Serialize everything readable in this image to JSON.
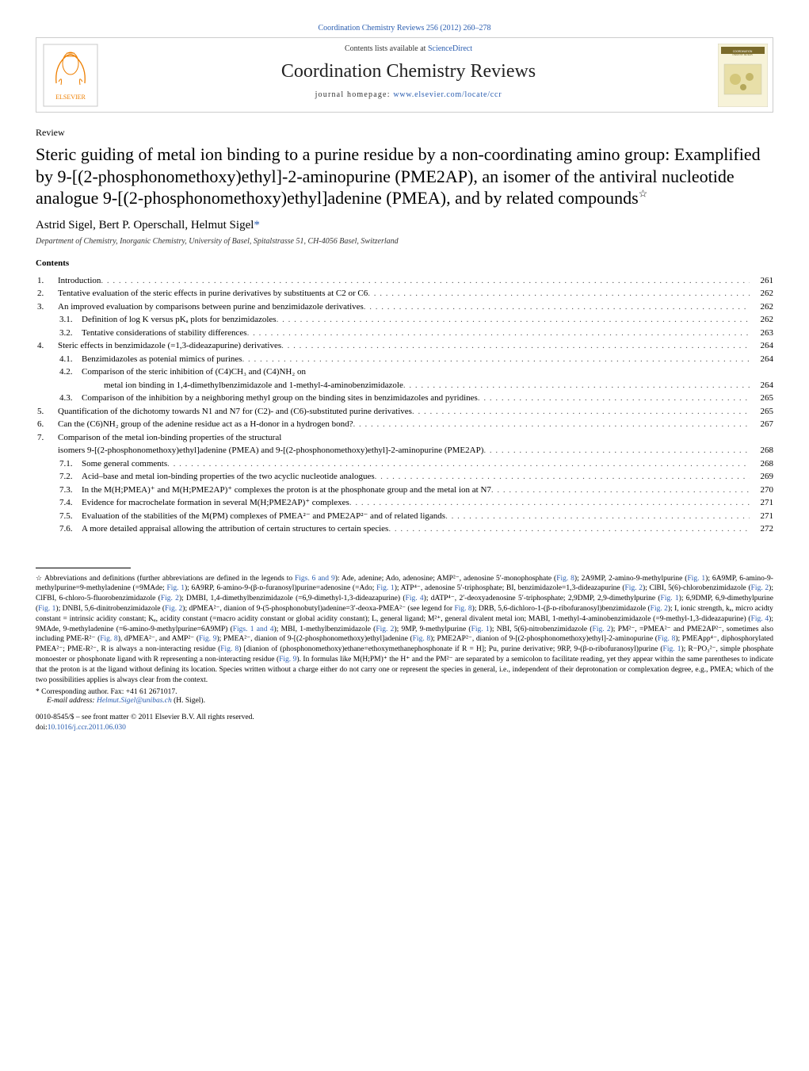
{
  "top_link": "Coordination Chemistry Reviews 256 (2012) 260–278",
  "header": {
    "contents_prefix": "Contents lists available at ",
    "contents_link": "ScienceDirect",
    "journal": "Coordination Chemistry Reviews",
    "homepage_prefix": "journal homepage: ",
    "homepage_link": "www.elsevier.com/locate/ccr",
    "cover_label": "COORDINATION CHEMISTRY REVIEWS"
  },
  "review_tag": "Review",
  "title": "Steric guiding of metal ion binding to a purine residue by a non-coordinating amino group: Examplified by 9-[(2-phosphonomethoxy)ethyl]-2-aminopurine (PME2AP), an isomer of the antiviral nucleotide analogue 9-[(2-phosphonomethoxy)ethyl]adenine (PMEA), and by related compounds",
  "title_note": "☆",
  "authors": "Astrid Sigel, Bert P. Operschall, Helmut Sigel",
  "author_star": "*",
  "affiliation": "Department of Chemistry, Inorganic Chemistry, University of Basel, Spitalstrasse 51, CH-4056 Basel, Switzerland",
  "contents_header": "Contents",
  "toc": [
    {
      "num": "1.",
      "text": "Introduction",
      "page": "261",
      "level": 0
    },
    {
      "num": "2.",
      "text": "Tentative evaluation of the steric effects in purine derivatives by substituents at C2 or C6",
      "page": "262",
      "level": 0
    },
    {
      "num": "3.",
      "text": "An improved evaluation by comparisons between purine and benzimidazole derivatives",
      "page": "262",
      "level": 0
    },
    {
      "num": "3.1.",
      "text": "Definition of log K versus pKₐ plots for benzimidazoles",
      "page": "262",
      "level": 1
    },
    {
      "num": "3.2.",
      "text": "Tentative considerations of stability differences",
      "page": "263",
      "level": 1
    },
    {
      "num": "4.",
      "text": "Steric effects in benzimidazole (=1,3-dideazapurine) derivatives",
      "page": "264",
      "level": 0
    },
    {
      "num": "4.1.",
      "text": "Benzimidazoles as potenial mimics of purines",
      "page": "264",
      "level": 1
    },
    {
      "num": "4.2.",
      "text": "Comparison of the steric inhibition of (C4)CH₃ and (C4)NH₂ on metal ion binding in 1,4-dimethylbenzimidazole and 1-methyl-4-aminobenzimidazole",
      "page": "264",
      "level": 1
    },
    {
      "num": "4.3.",
      "text": "Comparison of the inhibition by a neighboring methyl group on the binding sites in benzimidazoles and pyridines",
      "page": "265",
      "level": 1
    },
    {
      "num": "5.",
      "text": "Quantification of the dichotomy towards N1 and N7 for (C2)- and (C6)-substituted purine derivatives",
      "page": "265",
      "level": 0
    },
    {
      "num": "6.",
      "text": "Can the (C6)NH₂ group of the adenine residue act as a H-donor in a hydrogen bond?",
      "page": "267",
      "level": 0
    },
    {
      "num": "7.",
      "text": "Comparison of the metal ion-binding properties of the structural isomers 9-[(2-phosphonomethoxy)ethyl]adenine (PMEA) and 9-[(2-phosphonomethoxy)ethyl]-2-aminopurine (PME2AP)",
      "page": "268",
      "level": 0
    },
    {
      "num": "7.1.",
      "text": "Some general comments",
      "page": "268",
      "level": 1
    },
    {
      "num": "7.2.",
      "text": "Acid–base and metal ion-binding properties of the two acyclic nucleotide analogues",
      "page": "269",
      "level": 1
    },
    {
      "num": "7.3.",
      "text": "In the M(H;PMEA)⁺ and M(H;PME2AP)⁺ complexes the proton is at the phosphonate group and the metal ion at N7",
      "page": "270",
      "level": 1
    },
    {
      "num": "7.4.",
      "text": "Evidence for macrochelate formation in several M(H;PME2AP)⁺ complexes",
      "page": "271",
      "level": 1
    },
    {
      "num": "7.5.",
      "text": "Evaluation of the stabilities of the M(PM) complexes of PMEA²⁻ and PME2AP²⁻ and of related ligands",
      "page": "271",
      "level": 1
    },
    {
      "num": "7.6.",
      "text": "A more detailed appraisal allowing the attribution of certain structures to certain species",
      "page": "272",
      "level": 1
    }
  ],
  "footnote_marker": "☆",
  "footnote": "Abbreviations and definitions (further abbreviations are defined in the legends to Figs. 6 and 9): Ade, adenine; Ado, adenosine; AMP²⁻, adenosine 5′-monophosphate (Fig. 8); 2A9MP, 2-amino-9-methylpurine (Fig. 1); 6A9MP, 6-amino-9-methylpurine=9-methyladenine (=9MAde; Fig. 1); 6A9RP, 6-amino-9-(β-ᴅ-furanosyl)purine=adenosine (=Ado; Fig. 1); ATP⁴⁻, adenosine 5′-triphosphate; BI, benzimidazole=1,3-dideazapurine (Fig. 2); ClBI, 5(6)-chlorobenzimidazole (Fig. 2); ClFBI, 6-chloro-5-fluorobenzimidazole (Fig. 2); DMBI, 1,4-dimethylbenzimidazole (=6,9-dimethyl-1,3-dideazapurine) (Fig. 4); dATP⁴⁻, 2′-deoxyadenosine 5′-triphosphate; 2,9DMP, 2,9-dimethylpurine (Fig. 1); 6,9DMP, 6,9-dimethylpurine (Fig. 1); DNBI, 5,6-dinitrobenzimidazole (Fig. 2); dPMEA²⁻, dianion of 9-(5-phosphonobutyl)adenine=3′-deoxa-PMEA²⁻ (see legend for Fig. 8); DRB, 5,6-dichloro-1-(β-ᴅ-ribofuranosyl)benzimidazole (Fig. 2); I, ionic strength, kₐ, micro acidty constant = intrinsic acidity constant; Kₐ, acidity constant (=macro acidity constant or global acidity constant); L, general ligand; M²⁺, general divalent metal ion; MABI, 1-methyl-4-aminobenzimidazole (=9-methyl-1,3-dideazapurine) (Fig. 4); 9MAde, 9-methyladenine (=6-amino-9-methylpurine=6A9MP) (Figs. 1 and 4); MBI, 1-methylbenzimidazole (Fig. 2); 9MP, 9-methylpurine (Fig. 1); NBI, 5(6)-nitrobenzimidazole (Fig. 2); PM²⁻, =PMEA²⁻ and PME2AP²⁻, sometimes also including PME-R²⁻ (Fig. 8), dPMEA²⁻, and AMP²⁻ (Fig. 9); PMEA²⁻, dianion of 9-[(2-phosphonomethoxy)ethyl]adenine (Fig. 8); PME2AP²⁻, dianion of 9-[(2-phosphonomethoxy)ethyl]-2-aminopurine (Fig. 8); PMEApp⁴⁻, diphosphorylated PMEA²⁻; PME-R²⁻, R is always a non-interacting residue (Fig. 8) [dianion of (phosphonomethoxy)ethane=ethoxymethanephosphonate if R = H]; Pu, purine derivative; 9RP, 9-(β-ᴅ-ribofuranosyl)purine (Fig. 1); R−PO₃²⁻, simple phosphate monoester or phosphonate ligand with R representing a non-interacting residue (Fig. 9). In formulas like M(H;PM)⁺ the H⁺ and the PM²⁻ are separated by a semicolon to facilitate reading, yet they appear within the same parentheses to indicate that the proton is at the ligand without defining its location. Species written without a charge either do not carry one or represent the species in general, i.e., independent of their deprotonation or complexation degree, e.g., PMEA; which of the two possibilities applies is always clear from the context.",
  "corr_marker": "*",
  "corr_text": " Corresponding author. Fax: +41 61 2671017.",
  "email_label": "E-mail address: ",
  "email": "Helmut.Sigel@unibas.ch",
  "email_suffix": " (H. Sigel).",
  "copyright_line1": "0010-8545/$ – see front matter © 2011 Elsevier B.V. All rights reserved.",
  "doi_prefix": "doi:",
  "doi": "10.1016/j.ccr.2011.06.030",
  "colors": {
    "link": "#2a5db0",
    "text": "#000000",
    "border": "#cccccc",
    "elsevier_orange": "#ee7f00",
    "elsevier_border": "#c8c8c8",
    "cover_bg": "#f7f3d9",
    "cover_accent": "#7a6a2a"
  }
}
